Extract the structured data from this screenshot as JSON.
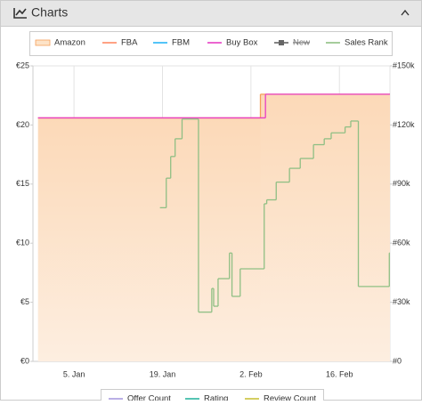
{
  "header": {
    "title": "Charts"
  },
  "chart_data": {
    "type": "line",
    "step": true,
    "xlim": [
      -1.5,
      55
    ],
    "xticks": [
      {
        "value": 5,
        "label": "5. Jan"
      },
      {
        "value": 19,
        "label": "19. Jan"
      },
      {
        "value": 33,
        "label": "2. Feb"
      },
      {
        "value": 47,
        "label": "16. Feb"
      }
    ],
    "ylim": [
      0,
      25
    ],
    "yticks": [
      {
        "value": 0,
        "label": "€0"
      },
      {
        "value": 5,
        "label": "€5"
      },
      {
        "value": 10,
        "label": "€10"
      },
      {
        "value": 15,
        "label": "€15"
      },
      {
        "value": 20,
        "label": "€20"
      },
      {
        "value": 25,
        "label": "€25"
      }
    ],
    "y2lim": [
      0,
      150000
    ],
    "y2ticks": [
      {
        "value": 0,
        "label": "#0"
      },
      {
        "value": 30000,
        "label": "#30k"
      },
      {
        "value": 60000,
        "label": "#60k"
      },
      {
        "value": 90000,
        "label": "#90k"
      },
      {
        "value": 120000,
        "label": "#120k"
      },
      {
        "value": 150000,
        "label": "#150k"
      }
    ],
    "grid": "x",
    "series": [
      {
        "name": "Amazon",
        "color": "#f5a05a",
        "area": true,
        "legend": "top",
        "x": [
          -0.7,
          34.5
        ],
        "values": [
          20.6,
          22.6
        ]
      },
      {
        "name": "FBA",
        "color": "#ff8a65",
        "legend": "top",
        "x": [],
        "values": []
      },
      {
        "name": "FBM",
        "color": "#29b6f6",
        "legend": "top",
        "x": [],
        "values": []
      },
      {
        "name": "Buy Box",
        "color": "#e83ec4",
        "legend": "top",
        "x": [
          -0.7,
          35.3
        ],
        "values": [
          20.6,
          22.6
        ]
      },
      {
        "name": "New",
        "color": "#666666",
        "legend": "top",
        "hidden": true,
        "x": [],
        "values": []
      },
      {
        "name": "Sales Rank",
        "color": "#8fbf84",
        "legend": "top",
        "axis": "y2",
        "x": [
          18.6,
          19.6,
          20.3,
          21.0,
          22.1,
          24.7,
          26.8,
          27.1,
          27.8,
          29.6,
          30.0,
          31.3,
          35.1,
          35.5,
          37.0,
          39.1,
          40.8,
          42.9,
          44.6,
          45.7,
          47.9,
          48.8,
          50.0,
          54.9
        ],
        "values": [
          78000,
          93000,
          104000,
          113000,
          123000,
          25000,
          37000,
          28000,
          42000,
          55000,
          33000,
          47000,
          80000,
          82000,
          91000,
          98000,
          103000,
          110000,
          113000,
          116000,
          119000,
          122000,
          38000,
          55000
        ]
      },
      {
        "name": "Offer Count",
        "color": "#a99be0",
        "legend": "bottom",
        "x": [],
        "values": []
      },
      {
        "name": "Rating",
        "color": "#2bb5a0",
        "legend": "bottom",
        "x": [],
        "values": []
      },
      {
        "name": "Review Count",
        "color": "#c9c23a",
        "legend": "bottom",
        "x": [],
        "values": []
      }
    ]
  }
}
